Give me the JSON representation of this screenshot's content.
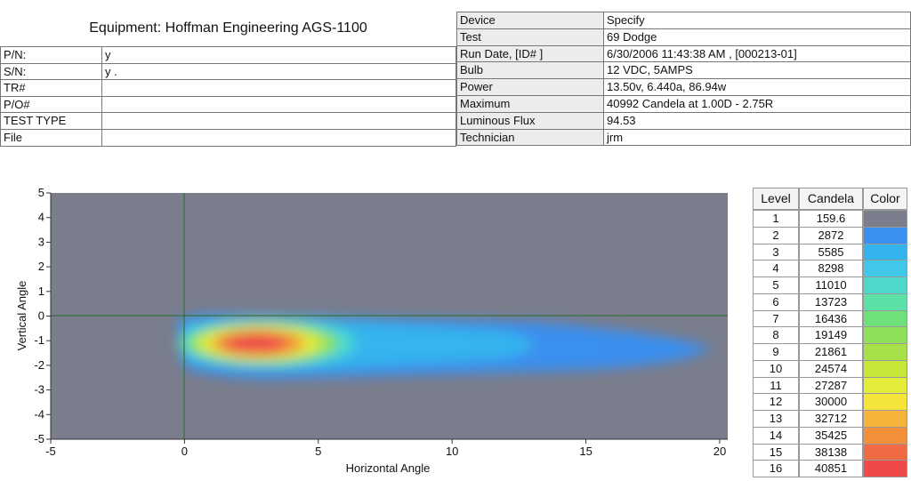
{
  "header": {
    "title": "Equipment: Hoffman Engineering AGS-1100"
  },
  "left_table": {
    "rows": [
      {
        "label": "P/N:",
        "value": "y"
      },
      {
        "label": "S/N:",
        "value": "y ."
      },
      {
        "label": "TR#"
      },
      {
        "label": "P/O#"
      },
      {
        "label": "TEST TYPE"
      },
      {
        "label": "File"
      }
    ]
  },
  "right_table": {
    "rows": [
      {
        "label": "Device",
        "value": "Specify"
      },
      {
        "label": "Test",
        "value": "69 Dodge"
      },
      {
        "label": "Run Date, [ID# ]",
        "value": "6/30/2006 11:43:38 AM ,  [000213-01]"
      },
      {
        "label": "Bulb",
        "value": "12 VDC, 5AMPS"
      },
      {
        "label": "Power",
        "value": "13.50v, 6.440a, 86.94w"
      },
      {
        "label": "Maximum",
        "value": "40992 Candela at 1.00D - 2.75R"
      },
      {
        "label": "Luminous Flux",
        "value": "94.53"
      },
      {
        "label": "Technician",
        "value": "jrm"
      }
    ]
  },
  "chart_data": {
    "type": "heatmap",
    "x_label": "Horizontal Angle",
    "y_label": "Vertical Angle",
    "xlim": [
      -5,
      20.3
    ],
    "ylim": [
      -5,
      5
    ],
    "xticks": [
      -5,
      0,
      5,
      10,
      15,
      20
    ],
    "yticks": [
      -5,
      -4,
      -3,
      -2,
      -1,
      0,
      1,
      2,
      3,
      4,
      5
    ]
  },
  "legend": {
    "headers": [
      "Level",
      "Candela",
      "Color"
    ],
    "rows": [
      {
        "level": 1,
        "candela": 159.6,
        "color": "#7a7d8c"
      },
      {
        "level": 2,
        "candela": 2872,
        "color": "#3a8fef"
      },
      {
        "level": 3,
        "candela": 5585,
        "color": "#34b4ee"
      },
      {
        "level": 4,
        "candela": 8298,
        "color": "#3fc8ea"
      },
      {
        "level": 5,
        "candela": 11010,
        "color": "#4cd9cc"
      },
      {
        "level": 6,
        "candela": 13723,
        "color": "#5ddfa8"
      },
      {
        "level": 7,
        "candela": 16436,
        "color": "#6fe07a"
      },
      {
        "level": 8,
        "candela": 19149,
        "color": "#8ee05a"
      },
      {
        "level": 9,
        "candela": 21861,
        "color": "#a8e04a"
      },
      {
        "level": 10,
        "candela": 24574,
        "color": "#c6e83a"
      },
      {
        "level": 11,
        "candela": 27287,
        "color": "#e4ec3a"
      },
      {
        "level": 12,
        "candela": 30000,
        "color": "#f5e43a"
      },
      {
        "level": 13,
        "candela": 32712,
        "color": "#f6b43a"
      },
      {
        "level": 14,
        "candela": 35425,
        "color": "#f4903a"
      },
      {
        "level": 15,
        "candela": 38138,
        "color": "#f06a44"
      },
      {
        "level": 16,
        "candela": 40851,
        "color": "#ee4a4a"
      }
    ]
  }
}
